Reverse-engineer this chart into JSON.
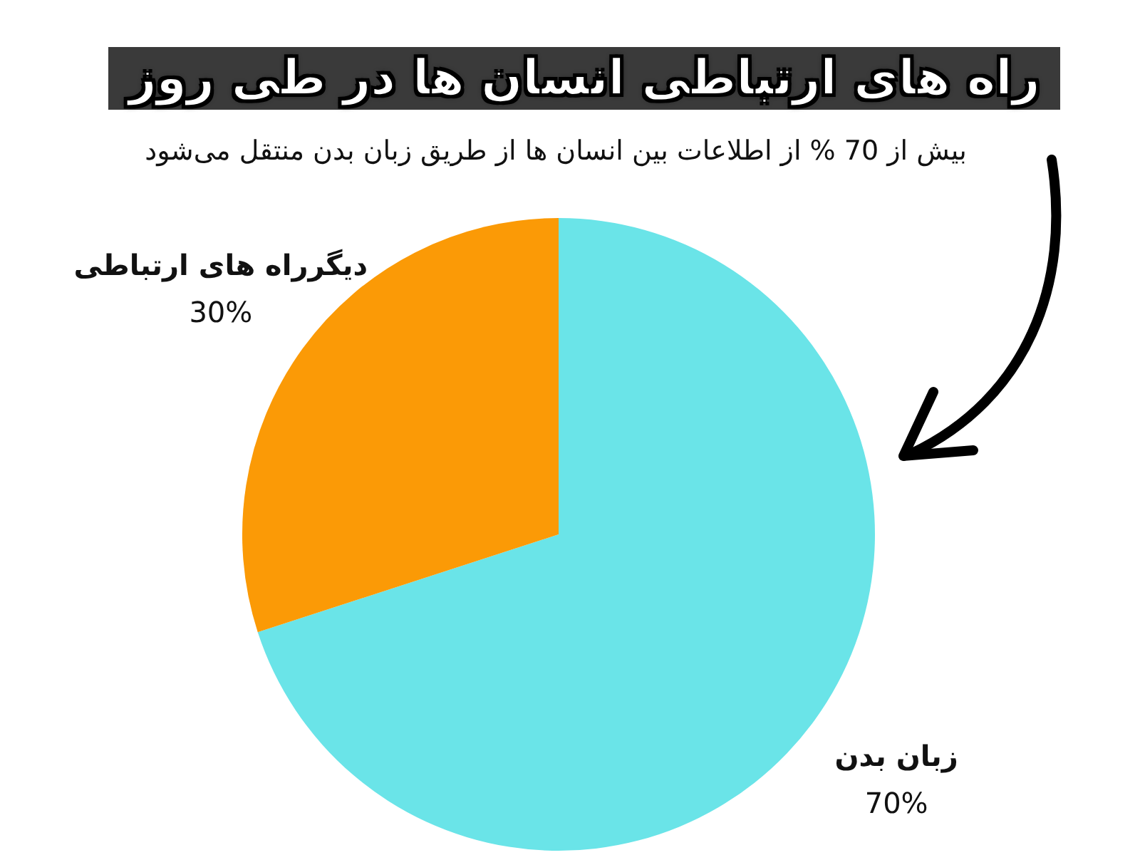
{
  "chart_data": {
    "type": "pie",
    "title": "راه های ارتباطی انسان ها در طی روز",
    "subtitle": "بیش از 70 % از اطلاعات بین انسان ها از طریق زبان بدن منتقل می‌شود",
    "categories": [
      "زبان بدن",
      "دیگرراه های ارتباطی"
    ],
    "values": [
      70,
      30
    ],
    "colors": [
      "#6ae4e8",
      "#fb9a06"
    ],
    "value_labels": [
      "70%",
      "30%"
    ],
    "legend": false
  }
}
